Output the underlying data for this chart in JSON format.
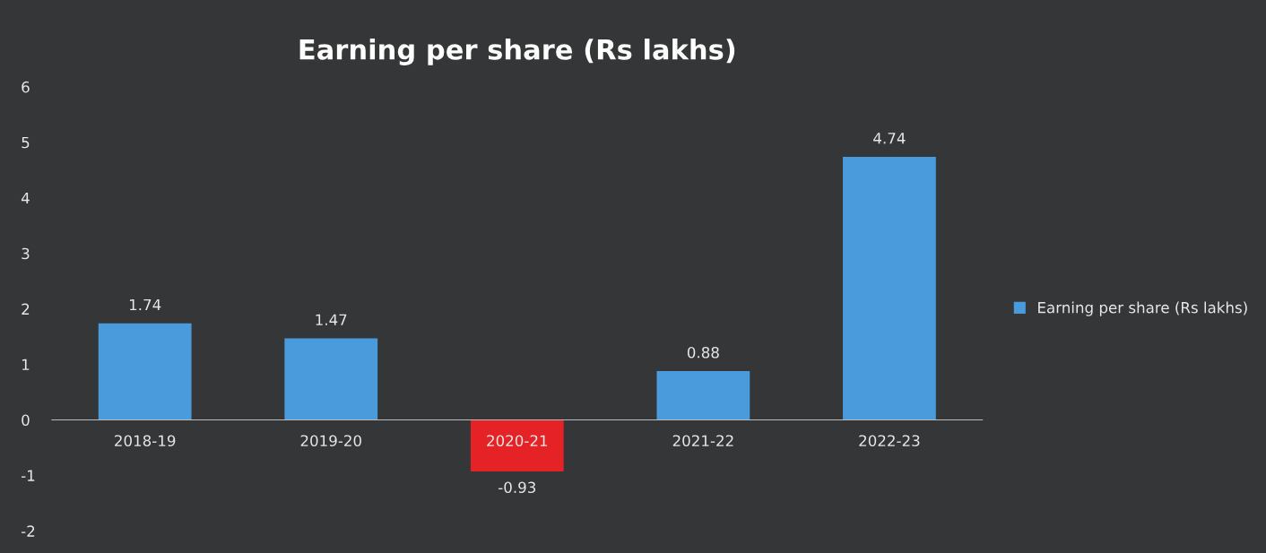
{
  "chart_data": {
    "type": "bar",
    "title": "Earning per share (Rs lakhs)",
    "categories": [
      "2018-19",
      "2019-20",
      "2020-21",
      "2021-22",
      "2022-23"
    ],
    "series": [
      {
        "name": "Earning per share (Rs lakhs)",
        "color": "#4a9bdb",
        "values": [
          1.74,
          1.47,
          -0.93,
          0.88,
          4.74
        ],
        "colors": [
          "#4a9bdb",
          "#4a9bdb",
          "#e52326",
          "#4a9bdb",
          "#4a9bdb"
        ]
      }
    ],
    "ylim": [
      -2,
      6
    ],
    "yticks": [
      -2,
      -1,
      0,
      1,
      2,
      3,
      4,
      5,
      6
    ],
    "grid": false,
    "legend": "right",
    "data_labels": true
  }
}
